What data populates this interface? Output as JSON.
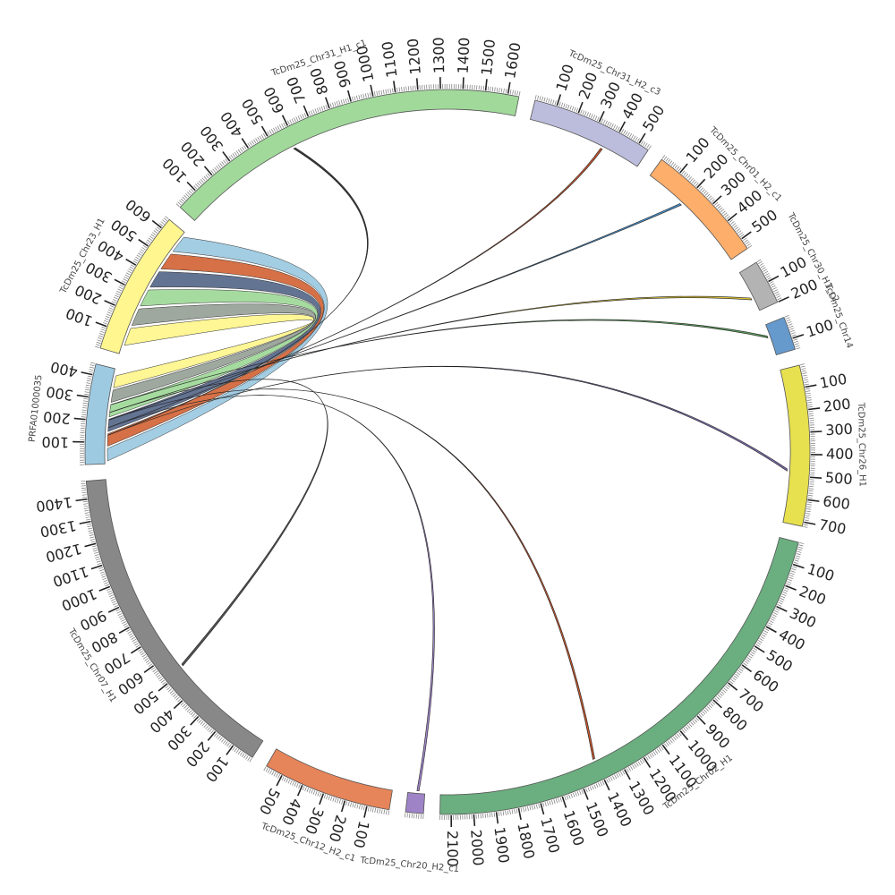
{
  "diagram": {
    "type": "circos",
    "unit_per_tick": 100,
    "chromosomes": [
      {
        "name": "PRFA01000035",
        "length": 450,
        "color": "#9ECAE1",
        "ticks": [
          "100",
          "200",
          "300",
          "400"
        ]
      },
      {
        "name": "TcDm25_Chr23_H1",
        "length": 650,
        "color": "#FFF68F",
        "ticks": [
          "100",
          "200",
          "300",
          "400",
          "500",
          "600"
        ]
      },
      {
        "name": "TcDm25_Chr31_H1_c1",
        "length": 1650,
        "color": "#A1D99B",
        "ticks": [
          "100",
          "200",
          "300",
          "400",
          "500",
          "600",
          "700",
          "800",
          "900",
          "1000",
          "1100",
          "1200",
          "1300",
          "1400",
          "1500",
          "1600"
        ]
      },
      {
        "name": "TcDm25_Chr31_H2_c3",
        "length": 550,
        "color": "#BCBDDC",
        "ticks": [
          "100",
          "200",
          "300",
          "400",
          "500"
        ]
      },
      {
        "name": "TcDm25_Chr01_H2_c1",
        "length": 550,
        "color": "#FDAE6B",
        "ticks": [
          "100",
          "200",
          "300",
          "400",
          "500"
        ]
      },
      {
        "name": "TcDm25_Chr30_H1_c2",
        "length": 200,
        "color": "#B3B3B3",
        "ticks": [
          "100",
          "200"
        ]
      },
      {
        "name": "TcDm25_Chr14",
        "length": 150,
        "color": "#6699CC",
        "ticks": [
          "100"
        ]
      },
      {
        "name": "TcDm25_Chr26_H1",
        "length": 720,
        "color": "#E7E04F",
        "ticks": [
          "100",
          "200",
          "300",
          "400",
          "500",
          "600",
          "700"
        ]
      },
      {
        "name": "TcDm25_Chr02_H1",
        "length": 2150,
        "color": "#6BAE7F",
        "ticks": [
          "100",
          "200",
          "300",
          "400",
          "500",
          "600",
          "700",
          "800",
          "900",
          "1000",
          "1100",
          "1200",
          "1300",
          "1400",
          "1500",
          "1600",
          "1700",
          "1800",
          "1900",
          "2000",
          "2100"
        ]
      },
      {
        "name": "TcDm25_Chr20_H2_c1",
        "length": 80,
        "color": "#9E84C7",
        "ticks": []
      },
      {
        "name": "TcDm25_Chr12_H2_c1",
        "length": 580,
        "color": "#E6845A",
        "ticks": [
          "100",
          "200",
          "300",
          "400",
          "500"
        ]
      },
      {
        "name": "TcDm25_Chr07_H1",
        "length": 1480,
        "color": "#888888",
        "ticks": [
          "100",
          "200",
          "300",
          "400",
          "500",
          "600",
          "700",
          "800",
          "900",
          "1000",
          "1100",
          "1200",
          "1300",
          "1400"
        ]
      }
    ],
    "ribbons": [
      {
        "from": "PRFA01000035",
        "to": "TcDm25_Chr23_H1",
        "color": "#9ECAE1"
      },
      {
        "from": "PRFA01000035",
        "to": "TcDm25_Chr23_H1",
        "color": "#D4683C"
      },
      {
        "from": "PRFA01000035",
        "to": "TcDm25_Chr23_H1",
        "color": "#5B6B8C"
      },
      {
        "from": "PRFA01000035",
        "to": "TcDm25_Chr23_H1",
        "color": "#A1D99B"
      },
      {
        "from": "PRFA01000035",
        "to": "TcDm25_Chr23_H1",
        "color": "#9AA39A"
      },
      {
        "from": "PRFA01000035",
        "to": "TcDm25_Chr23_H1",
        "color": "#FFF68F"
      }
    ],
    "links": [
      {
        "from": "PRFA01000035",
        "to": "TcDm25_Chr31_H1_c1",
        "color": "#3A3A3A"
      },
      {
        "from": "PRFA01000035",
        "to": "TcDm25_Chr31_H2_c3",
        "color": "#C0552E"
      },
      {
        "from": "PRFA01000035",
        "to": "TcDm25_Chr01_H2_c1",
        "color": "#4A90C8"
      },
      {
        "from": "PRFA01000035",
        "to": "TcDm25_Chr30_H1_c2",
        "color": "#D9C23A"
      },
      {
        "from": "PRFA01000035",
        "to": "TcDm25_Chr14",
        "color": "#5A9A5A"
      },
      {
        "from": "PRFA01000035",
        "to": "TcDm25_Chr26_H1",
        "color": "#7A6AA8"
      },
      {
        "from": "PRFA01000035",
        "to": "TcDm25_Chr20_H2_c1",
        "color": "#9E84C7"
      },
      {
        "from": "PRFA01000035",
        "to": "TcDm25_Chr02_H1",
        "color": "#C0552E"
      },
      {
        "from": "PRFA01000035",
        "to": "TcDm25_Chr07_H1",
        "color": "#555555"
      }
    ]
  }
}
